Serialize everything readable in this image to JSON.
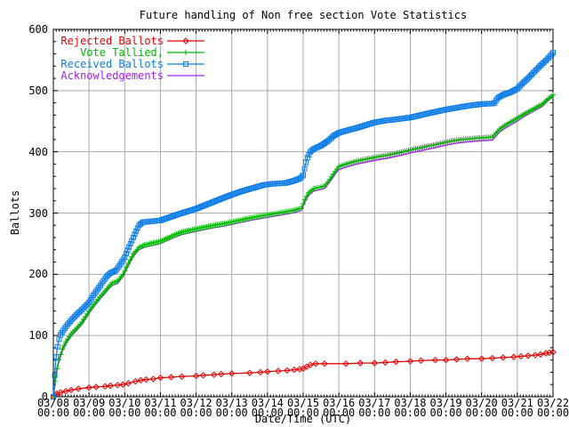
{
  "chart_data": {
    "type": "line",
    "title": "Future handling of Non free section Vote Statistics",
    "xlabel": "Date/Time (UTC)",
    "ylabel": "Ballots",
    "background": "#ffffff",
    "axis_color": "#000000",
    "grid_color": "#aaaaaa",
    "grid": true,
    "legend_position": "top-left-inside",
    "ylim": [
      0,
      600
    ],
    "yticks": [
      0,
      100,
      200,
      300,
      400,
      500,
      600
    ],
    "y_minor_step": 20,
    "xlim_days": [
      8,
      22
    ],
    "x_minor_per_day": 12,
    "x_tick_dates": [
      "03/08",
      "03/09",
      "03/10",
      "03/11",
      "03/12",
      "03/13",
      "03/14",
      "03/15",
      "03/16",
      "03/17",
      "03/18",
      "03/19",
      "03/20",
      "03/21",
      "03/22"
    ],
    "x_tick_time": "00:00",
    "draw_order": [
      0,
      3,
      1,
      2
    ],
    "series": [
      {
        "name": "Rejected Ballots",
        "color": "#e60000",
        "marker": "diamond",
        "sample_step": null,
        "points": [
          [
            8,
            0
          ],
          [
            8.05,
            3
          ],
          [
            8.1,
            5
          ],
          [
            8.2,
            7
          ],
          [
            8.35,
            9
          ],
          [
            8.5,
            11
          ],
          [
            8.7,
            13
          ],
          [
            9,
            15
          ],
          [
            9.2,
            16
          ],
          [
            9.45,
            17
          ],
          [
            9.6,
            18
          ],
          [
            9.8,
            19
          ],
          [
            9.95,
            20
          ],
          [
            10.1,
            22
          ],
          [
            10.3,
            25
          ],
          [
            10.45,
            27
          ],
          [
            10.6,
            28
          ],
          [
            10.8,
            29
          ],
          [
            11,
            31
          ],
          [
            11.3,
            32
          ],
          [
            11.6,
            33
          ],
          [
            12,
            34
          ],
          [
            12.2,
            35
          ],
          [
            12.5,
            36
          ],
          [
            12.7,
            37
          ],
          [
            13,
            38
          ],
          [
            13.5,
            39
          ],
          [
            13.8,
            40
          ],
          [
            14,
            41
          ],
          [
            14.3,
            42
          ],
          [
            14.55,
            43
          ],
          [
            14.75,
            44
          ],
          [
            14.9,
            45
          ],
          [
            15,
            46
          ],
          [
            15.1,
            49
          ],
          [
            15.2,
            52
          ],
          [
            15.35,
            54
          ],
          [
            15.6,
            54
          ],
          [
            16.2,
            54
          ],
          [
            16.6,
            55
          ],
          [
            17,
            55
          ],
          [
            17.3,
            56
          ],
          [
            17.6,
            57
          ],
          [
            18,
            58
          ],
          [
            18.3,
            59
          ],
          [
            18.7,
            60
          ],
          [
            19,
            60
          ],
          [
            19.3,
            61
          ],
          [
            19.6,
            62
          ],
          [
            20,
            62
          ],
          [
            20.3,
            63
          ],
          [
            20.6,
            64
          ],
          [
            20.9,
            65
          ],
          [
            21.1,
            66
          ],
          [
            21.3,
            67
          ],
          [
            21.5,
            68
          ],
          [
            21.65,
            69
          ],
          [
            21.8,
            71
          ],
          [
            21.9,
            72
          ],
          [
            22,
            73
          ]
        ]
      },
      {
        "name": "Vote Tallied,",
        "color": "#00b400",
        "marker": "plus",
        "sample_step": 0.05,
        "points": [
          [
            8,
            0
          ],
          [
            8.04,
            20
          ],
          [
            8.08,
            40
          ],
          [
            8.15,
            60
          ],
          [
            8.25,
            78
          ],
          [
            8.35,
            90
          ],
          [
            8.5,
            103
          ],
          [
            8.65,
            112
          ],
          [
            8.8,
            122
          ],
          [
            9,
            140
          ],
          [
            9.15,
            152
          ],
          [
            9.3,
            163
          ],
          [
            9.45,
            173
          ],
          [
            9.55,
            180
          ],
          [
            9.65,
            186
          ],
          [
            9.8,
            189
          ],
          [
            9.95,
            200
          ],
          [
            10.1,
            218
          ],
          [
            10.25,
            234
          ],
          [
            10.4,
            244
          ],
          [
            10.55,
            248
          ],
          [
            11,
            254
          ],
          [
            11.3,
            262
          ],
          [
            11.6,
            269
          ],
          [
            12,
            274
          ],
          [
            12.4,
            279
          ],
          [
            12.8,
            283
          ],
          [
            13.2,
            288
          ],
          [
            13.6,
            293
          ],
          [
            14,
            297
          ],
          [
            14.4,
            301
          ],
          [
            14.7,
            304
          ],
          [
            14.95,
            308
          ],
          [
            15.05,
            322
          ],
          [
            15.15,
            333
          ],
          [
            15.3,
            340
          ],
          [
            15.6,
            344
          ],
          [
            15.75,
            355
          ],
          [
            15.9,
            368
          ],
          [
            16,
            376
          ],
          [
            16.2,
            380
          ],
          [
            16.5,
            385
          ],
          [
            17,
            391
          ],
          [
            17.4,
            395
          ],
          [
            17.8,
            400
          ],
          [
            18,
            403
          ],
          [
            18.4,
            408
          ],
          [
            18.8,
            413
          ],
          [
            19.1,
            417
          ],
          [
            19.4,
            420
          ],
          [
            20,
            423
          ],
          [
            20.3,
            424
          ],
          [
            20.5,
            437
          ],
          [
            20.7,
            445
          ],
          [
            21,
            455
          ],
          [
            21.2,
            462
          ],
          [
            21.45,
            470
          ],
          [
            21.7,
            478
          ],
          [
            21.85,
            486
          ],
          [
            22,
            493
          ]
        ]
      },
      {
        "name": "Received Ballots",
        "color": "#0c7ce8",
        "marker": "square",
        "sample_step": 0.04,
        "points": [
          [
            8,
            0
          ],
          [
            8.03,
            25
          ],
          [
            8.06,
            55
          ],
          [
            8.1,
            75
          ],
          [
            8.15,
            92
          ],
          [
            8.2,
            101
          ],
          [
            8.3,
            110
          ],
          [
            8.4,
            118
          ],
          [
            8.5,
            125
          ],
          [
            8.6,
            131
          ],
          [
            8.7,
            137
          ],
          [
            8.8,
            142
          ],
          [
            8.9,
            148
          ],
          [
            9,
            154
          ],
          [
            9.1,
            164
          ],
          [
            9.2,
            172
          ],
          [
            9.3,
            180
          ],
          [
            9.4,
            189
          ],
          [
            9.5,
            197
          ],
          [
            9.6,
            202
          ],
          [
            9.75,
            206
          ],
          [
            9.85,
            214
          ],
          [
            10,
            228
          ],
          [
            10.1,
            242
          ],
          [
            10.2,
            255
          ],
          [
            10.3,
            268
          ],
          [
            10.4,
            280
          ],
          [
            10.5,
            285
          ],
          [
            11,
            288
          ],
          [
            11.2,
            292
          ],
          [
            11.5,
            298
          ],
          [
            12,
            307
          ],
          [
            12.3,
            314
          ],
          [
            12.6,
            321
          ],
          [
            13,
            330
          ],
          [
            13.3,
            336
          ],
          [
            13.6,
            341
          ],
          [
            13.9,
            346
          ],
          [
            14.2,
            348
          ],
          [
            14.5,
            349
          ],
          [
            14.7,
            352
          ],
          [
            14.9,
            356
          ],
          [
            15,
            362
          ],
          [
            15.1,
            388
          ],
          [
            15.2,
            400
          ],
          [
            15.3,
            405
          ],
          [
            15.5,
            410
          ],
          [
            15.7,
            418
          ],
          [
            15.85,
            426
          ],
          [
            16,
            431
          ],
          [
            16.3,
            436
          ],
          [
            16.5,
            439
          ],
          [
            17,
            448
          ],
          [
            17.3,
            451
          ],
          [
            17.6,
            453
          ],
          [
            18,
            456
          ],
          [
            18.3,
            460
          ],
          [
            18.6,
            464
          ],
          [
            19,
            469
          ],
          [
            19.3,
            472
          ],
          [
            19.6,
            475
          ],
          [
            20,
            478
          ],
          [
            20.35,
            479
          ],
          [
            20.45,
            488
          ],
          [
            20.6,
            493
          ],
          [
            20.8,
            497
          ],
          [
            21,
            503
          ],
          [
            21.15,
            512
          ],
          [
            21.3,
            520
          ],
          [
            21.5,
            532
          ],
          [
            21.65,
            541
          ],
          [
            21.8,
            549
          ],
          [
            21.9,
            555
          ],
          [
            22,
            562
          ]
        ]
      },
      {
        "name": "Acknowledgements",
        "color": "#a020f0",
        "marker": "none",
        "sample_step": null,
        "points": [
          [
            8,
            0
          ],
          [
            8.04,
            17
          ],
          [
            8.08,
            36
          ],
          [
            8.15,
            56
          ],
          [
            8.25,
            74
          ],
          [
            8.35,
            86
          ],
          [
            8.5,
            99
          ],
          [
            8.65,
            108
          ],
          [
            8.8,
            118
          ],
          [
            9,
            136
          ],
          [
            9.15,
            148
          ],
          [
            9.3,
            159
          ],
          [
            9.45,
            169
          ],
          [
            9.55,
            176
          ],
          [
            9.65,
            182
          ],
          [
            9.8,
            185
          ],
          [
            9.95,
            196
          ],
          [
            10.1,
            214
          ],
          [
            10.25,
            230
          ],
          [
            10.4,
            240
          ],
          [
            10.55,
            244
          ],
          [
            11,
            250
          ],
          [
            11.3,
            258
          ],
          [
            11.6,
            265
          ],
          [
            12,
            270
          ],
          [
            12.4,
            275
          ],
          [
            12.8,
            279
          ],
          [
            13.2,
            284
          ],
          [
            13.6,
            289
          ],
          [
            14,
            293
          ],
          [
            14.4,
            297
          ],
          [
            14.7,
            300
          ],
          [
            14.95,
            304
          ],
          [
            15.05,
            318
          ],
          [
            15.15,
            329
          ],
          [
            15.3,
            336
          ],
          [
            15.6,
            340
          ],
          [
            15.75,
            351
          ],
          [
            15.9,
            364
          ],
          [
            16,
            371
          ],
          [
            16.2,
            375
          ],
          [
            16.5,
            380
          ],
          [
            17,
            386
          ],
          [
            17.4,
            390
          ],
          [
            17.8,
            395
          ],
          [
            18,
            398
          ],
          [
            18.4,
            403
          ],
          [
            18.8,
            408
          ],
          [
            19.1,
            412
          ],
          [
            19.4,
            415
          ],
          [
            20,
            418
          ],
          [
            20.3,
            419
          ],
          [
            20.5,
            432
          ],
          [
            20.7,
            440
          ],
          [
            21,
            450
          ],
          [
            21.2,
            458
          ],
          [
            21.45,
            466
          ],
          [
            21.7,
            474
          ],
          [
            21.85,
            483
          ],
          [
            22,
            490
          ]
        ]
      }
    ]
  }
}
